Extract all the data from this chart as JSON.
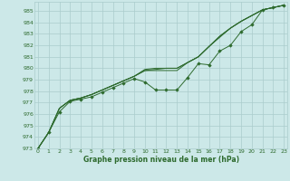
{
  "background_color": "#cce8e8",
  "grid_color": "#aacccc",
  "line_color": "#2d6a2d",
  "text_color": "#2d6a2d",
  "xlabel": "Graphe pression niveau de la mer (hPa)",
  "ylim": [
    973,
    985.8
  ],
  "xlim": [
    -0.3,
    23.3
  ],
  "yticks": [
    973,
    974,
    975,
    976,
    977,
    978,
    979,
    980,
    981,
    982,
    983,
    984,
    985
  ],
  "xticks": [
    0,
    1,
    2,
    3,
    4,
    5,
    6,
    7,
    8,
    9,
    10,
    11,
    12,
    13,
    14,
    15,
    16,
    17,
    18,
    19,
    20,
    21,
    22,
    23
  ],
  "series": [
    [
      973.0,
      974.4,
      976.2,
      977.1,
      977.3,
      977.5,
      977.9,
      978.3,
      978.7,
      979.1,
      978.8,
      978.1,
      978.1,
      978.1,
      979.2,
      980.4,
      980.3,
      981.5,
      982.0,
      983.2,
      983.8,
      985.1,
      985.3,
      985.5
    ],
    [
      973.0,
      974.4,
      976.5,
      977.2,
      977.4,
      977.7,
      978.1,
      978.5,
      978.9,
      979.3,
      979.8,
      979.8,
      979.8,
      979.8,
      980.5,
      981.0,
      981.9,
      982.7,
      983.5,
      984.1,
      984.6,
      985.1,
      985.3,
      985.5
    ],
    [
      973.0,
      974.4,
      976.5,
      977.2,
      977.4,
      977.7,
      978.1,
      978.5,
      978.9,
      979.3,
      979.8,
      979.9,
      980.0,
      980.0,
      980.5,
      981.0,
      981.9,
      982.8,
      983.5,
      984.1,
      984.6,
      985.1,
      985.3,
      985.5
    ],
    [
      973.0,
      974.4,
      976.5,
      977.2,
      977.4,
      977.7,
      978.1,
      978.5,
      978.9,
      979.3,
      979.9,
      980.0,
      980.0,
      980.0,
      980.5,
      981.0,
      981.9,
      982.8,
      983.5,
      984.1,
      984.6,
      985.1,
      985.3,
      985.5
    ]
  ],
  "marker_series_idx": 0,
  "marker_style": "D",
  "marker_size": 1.8,
  "tick_labelsize": 4.5,
  "xlabel_fontsize": 5.5,
  "linewidth": 0.7
}
